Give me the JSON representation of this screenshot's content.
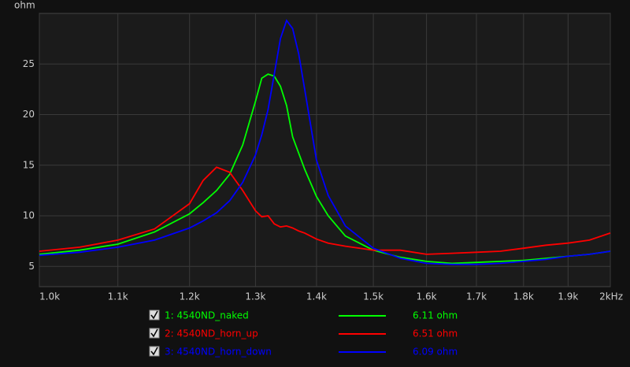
{
  "chart_data": {
    "type": "line",
    "y_label": "ohm",
    "xscale": "log",
    "grid": true,
    "x": [
      1000,
      1050,
      1100,
      1150,
      1200,
      1220,
      1240,
      1260,
      1280,
      1300,
      1310,
      1320,
      1330,
      1340,
      1350,
      1360,
      1370,
      1380,
      1400,
      1420,
      1450,
      1500,
      1550,
      1600,
      1650,
      1700,
      1750,
      1800,
      1850,
      1900,
      1950,
      2000
    ],
    "xlim": [
      1000,
      2000
    ],
    "xticks": [
      {
        "value": 1000,
        "label": "1.0k"
      },
      {
        "value": 1100,
        "label": "1.1k"
      },
      {
        "value": 1200,
        "label": "1.2k"
      },
      {
        "value": 1300,
        "label": "1.3k"
      },
      {
        "value": 1400,
        "label": "1.4k"
      },
      {
        "value": 1500,
        "label": "1.5k"
      },
      {
        "value": 1600,
        "label": "1.6k"
      },
      {
        "value": 1700,
        "label": "1.7k"
      },
      {
        "value": 1800,
        "label": "1.8k"
      },
      {
        "value": 1900,
        "label": "1.9k"
      },
      {
        "value": 2000,
        "label": "2kHz"
      }
    ],
    "ylim": [
      3,
      30
    ],
    "yticks": [
      5,
      10,
      15,
      20,
      25
    ],
    "series": [
      {
        "name": "1: 4540ND_naked",
        "color": "#00ff00",
        "readout": "6.11 ohm",
        "values": [
          6.2,
          6.6,
          7.2,
          8.4,
          10.2,
          11.3,
          12.5,
          14.1,
          17,
          21.3,
          23.6,
          24,
          23.8,
          22.8,
          20.9,
          17.8,
          16.2,
          14.6,
          11.9,
          10,
          8,
          6.6,
          5.9,
          5.5,
          5.3,
          5.4,
          5.5,
          5.6,
          5.8,
          6.0,
          6.2,
          6.5
        ]
      },
      {
        "name": "2: 4540ND_horn_up",
        "color": "#ff0000",
        "readout": "6.51 ohm",
        "values": [
          6.5,
          6.9,
          7.6,
          8.7,
          11.2,
          13.5,
          14.8,
          14.3,
          12.5,
          10.5,
          9.9,
          10.0,
          9.2,
          8.9,
          9.0,
          8.8,
          8.5,
          8.3,
          7.7,
          7.3,
          7.0,
          6.6,
          6.6,
          6.2,
          6.3,
          6.4,
          6.5,
          6.8,
          7.1,
          7.3,
          7.6,
          8.3
        ]
      },
      {
        "name": "3: 4540ND_horn_down",
        "color": "#0000ff",
        "readout": "6.09 ohm",
        "values": [
          6.1,
          6.4,
          6.9,
          7.6,
          8.8,
          9.5,
          10.3,
          11.5,
          13.3,
          16,
          18,
          20.5,
          24,
          27.5,
          29.3,
          28.5,
          26,
          22.5,
          15.5,
          12,
          9,
          6.8,
          5.8,
          5.3,
          5.2,
          5.2,
          5.3,
          5.5,
          5.7,
          6.0,
          6.2,
          6.5
        ]
      }
    ]
  }
}
